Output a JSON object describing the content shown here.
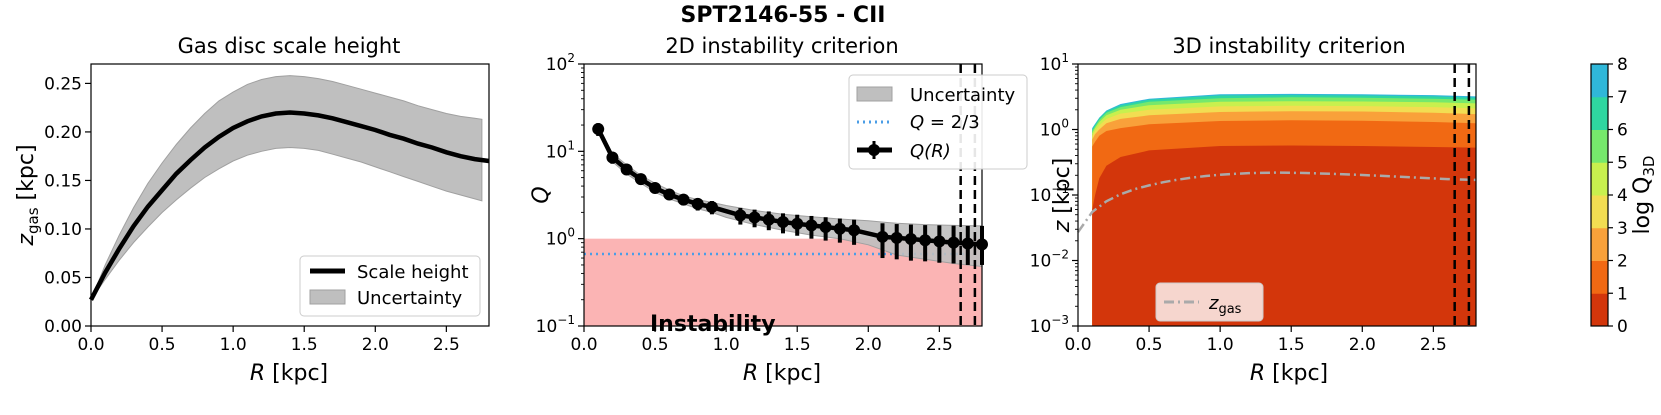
{
  "figure": {
    "suptitle": "SPT2146-55 - CII",
    "colors": {
      "band": "#bfbfbf",
      "band_edge": "#a0a0a0",
      "line": "#000000",
      "instability_fill": "#fbb4b4",
      "instability_text": "#ff0000",
      "q_line": "#4a9de6",
      "zgas_line": "#aaaaaa"
    }
  },
  "chart_data": [
    {
      "id": "scale-height",
      "type": "line",
      "title": "Gas disc scale height",
      "xlabel": "R [kpc]",
      "ylabel_main": "z",
      "ylabel_sub": "gas",
      "ylabel_unit": " [kpc]",
      "xlim": [
        0.0,
        2.8
      ],
      "ylim": [
        0.0,
        0.27
      ],
      "xticks": [
        "0.0",
        "0.5",
        "1.0",
        "1.5",
        "2.0",
        "2.5"
      ],
      "xtick_values": [
        0.0,
        0.5,
        1.0,
        1.5,
        2.0,
        2.5
      ],
      "yticks": [
        "0.00",
        "0.05",
        "0.10",
        "0.15",
        "0.20",
        "0.25"
      ],
      "ytick_values": [
        0.0,
        0.05,
        0.1,
        0.15,
        0.2,
        0.25
      ],
      "series": [
        {
          "name": "Scale height",
          "x": [
            0.0,
            0.1,
            0.2,
            0.3,
            0.4,
            0.5,
            0.6,
            0.7,
            0.8,
            0.9,
            1.0,
            1.1,
            1.2,
            1.3,
            1.4,
            1.5,
            1.6,
            1.7,
            1.8,
            1.9,
            2.0,
            2.1,
            2.2,
            2.3,
            2.4,
            2.5,
            2.6,
            2.7,
            2.8
          ],
          "y": [
            0.027,
            0.055,
            0.08,
            0.103,
            0.123,
            0.14,
            0.157,
            0.171,
            0.184,
            0.195,
            0.204,
            0.211,
            0.216,
            0.219,
            0.22,
            0.219,
            0.217,
            0.214,
            0.21,
            0.206,
            0.202,
            0.197,
            0.193,
            0.188,
            0.184,
            0.179,
            0.175,
            0.172,
            0.17
          ]
        },
        {
          "name": "Uncertainty",
          "x": [
            0.0,
            0.1,
            0.2,
            0.3,
            0.4,
            0.5,
            0.6,
            0.7,
            0.8,
            0.9,
            1.0,
            1.1,
            1.2,
            1.3,
            1.4,
            1.5,
            1.6,
            1.7,
            1.8,
            1.9,
            2.0,
            2.1,
            2.2,
            2.3,
            2.4,
            2.5,
            2.6,
            2.7,
            2.75
          ],
          "upper": [
            0.027,
            0.063,
            0.094,
            0.122,
            0.147,
            0.168,
            0.187,
            0.204,
            0.219,
            0.232,
            0.241,
            0.249,
            0.254,
            0.257,
            0.258,
            0.257,
            0.255,
            0.252,
            0.248,
            0.244,
            0.24,
            0.236,
            0.232,
            0.227,
            0.223,
            0.219,
            0.216,
            0.214,
            0.213
          ],
          "lower": [
            0.027,
            0.048,
            0.068,
            0.086,
            0.102,
            0.117,
            0.13,
            0.142,
            0.153,
            0.162,
            0.17,
            0.176,
            0.18,
            0.183,
            0.184,
            0.183,
            0.181,
            0.177,
            0.173,
            0.169,
            0.164,
            0.159,
            0.154,
            0.149,
            0.144,
            0.139,
            0.135,
            0.131,
            0.129
          ]
        }
      ],
      "legend": {
        "position": "lower-right",
        "entries": [
          "Scale height",
          "Uncertainty"
        ]
      }
    },
    {
      "id": "q2d",
      "type": "line",
      "title": "2D instability criterion",
      "xlabel": "R [kpc]",
      "ylabel": "Q",
      "yscale": "log",
      "xlim": [
        0.0,
        2.8
      ],
      "ylim": [
        0.1,
        100
      ],
      "xticks": [
        "0.0",
        "0.5",
        "1.0",
        "1.5",
        "2.0",
        "2.5"
      ],
      "xtick_values": [
        0.0,
        0.5,
        1.0,
        1.5,
        2.0,
        2.5
      ],
      "yticks": [
        {
          "base": "10",
          "exp": "−1",
          "value": 0.1
        },
        {
          "base": "10",
          "exp": "0",
          "value": 1
        },
        {
          "base": "10",
          "exp": "1",
          "value": 10
        },
        {
          "base": "10",
          "exp": "2",
          "value": 100
        }
      ],
      "instability_label": "Instability",
      "instability_threshold": 1,
      "q_threshold": 0.6667,
      "vlines": [
        2.65,
        2.75
      ],
      "series": [
        {
          "name": "Q(R)",
          "x": [
            0.1,
            0.2,
            0.3,
            0.4,
            0.5,
            0.6,
            0.7,
            0.8,
            0.9,
            1.1,
            1.2,
            1.3,
            1.4,
            1.5,
            1.6,
            1.7,
            1.8,
            1.9,
            2.1,
            2.2,
            2.3,
            2.4,
            2.5,
            2.6,
            2.7,
            2.8
          ],
          "y": [
            18,
            8.5,
            6.2,
            4.8,
            3.8,
            3.2,
            2.8,
            2.5,
            2.3,
            1.85,
            1.75,
            1.65,
            1.55,
            1.48,
            1.42,
            1.36,
            1.3,
            1.25,
            1.05,
            1.02,
            0.99,
            0.96,
            0.93,
            0.9,
            0.88,
            0.86
          ],
          "err_low": [
            15,
            7.2,
            5.4,
            4.2,
            3.3,
            2.8,
            2.4,
            2.1,
            1.9,
            1.45,
            1.35,
            1.25,
            1.15,
            1.08,
            1.0,
            0.95,
            0.9,
            0.85,
            0.6,
            0.58,
            0.56,
            0.55,
            0.53,
            0.52,
            0.5,
            0.5
          ],
          "err_high": [
            21,
            9.8,
            7.0,
            5.4,
            4.4,
            3.7,
            3.2,
            2.9,
            2.7,
            2.25,
            2.15,
            2.05,
            1.95,
            1.88,
            1.82,
            1.76,
            1.7,
            1.65,
            1.5,
            1.47,
            1.45,
            1.43,
            1.42,
            1.41,
            1.4,
            1.4
          ]
        },
        {
          "name": "Uncertainty",
          "x": [
            0.1,
            0.2,
            0.3,
            0.4,
            0.5,
            0.6,
            0.7,
            0.8,
            0.9,
            1.0,
            1.2,
            1.4,
            1.6,
            1.8,
            2.0,
            2.2,
            2.4,
            2.6,
            2.8
          ],
          "upper": [
            19.5,
            9.5,
            7.0,
            5.3,
            4.3,
            3.6,
            3.1,
            2.8,
            2.6,
            2.4,
            2.1,
            1.9,
            1.78,
            1.68,
            1.6,
            1.5,
            1.45,
            1.42,
            1.4
          ],
          "lower": [
            16.5,
            7.6,
            5.5,
            4.3,
            3.4,
            2.85,
            2.5,
            2.2,
            2.0,
            1.75,
            1.45,
            1.25,
            1.1,
            1.0,
            0.85,
            0.65,
            0.58,
            0.52,
            0.48
          ]
        }
      ],
      "legend": {
        "position": "upper-right",
        "entries": [
          {
            "label": "Uncertainty"
          },
          {
            "label_main": "Q",
            "label_rest": " = 2/3"
          },
          {
            "label_main": "Q",
            "label_rest": "(R)"
          }
        ]
      }
    },
    {
      "id": "q3d",
      "type": "heatmap",
      "title": "3D instability criterion",
      "xlabel": "R [kpc]",
      "ylabel": "z [kpc]",
      "yscale": "log",
      "xlim": [
        0.0,
        2.8
      ],
      "ylim": [
        0.001,
        10
      ],
      "xticks": [
        "0.0",
        "0.5",
        "1.0",
        "1.5",
        "2.0",
        "2.5"
      ],
      "xtick_values": [
        0.0,
        0.5,
        1.0,
        1.5,
        2.0,
        2.5
      ],
      "yticks": [
        {
          "base": "10",
          "exp": "−3",
          "value": 0.001
        },
        {
          "base": "10",
          "exp": "−2",
          "value": 0.01
        },
        {
          "base": "10",
          "exp": "−1",
          "value": 0.1
        },
        {
          "base": "10",
          "exp": "0",
          "value": 1
        },
        {
          "base": "10",
          "exp": "1",
          "value": 10
        }
      ],
      "vlines": [
        2.65,
        2.75
      ],
      "colorbar": {
        "label_main": "log Q",
        "label_sub": "3D",
        "ticks": [
          "0",
          "1",
          "2",
          "3",
          "4",
          "5",
          "6",
          "7",
          "8"
        ],
        "levels": [
          0,
          1,
          2,
          3,
          4,
          5,
          6,
          7,
          8
        ],
        "colors": [
          "#d3360b",
          "#f16913",
          "#f9a13a",
          "#f2dd52",
          "#c8f04e",
          "#76e86c",
          "#2fd6a0",
          "#30b7d9",
          "#3a8df2"
        ]
      },
      "level_boundaries": {
        "x": [
          0.1,
          0.12,
          0.15,
          0.2,
          0.3,
          0.5,
          1.0,
          1.5,
          2.0,
          2.5,
          2.8
        ],
        "z_levels": {
          "1": [
            0.06,
            0.1,
            0.18,
            0.28,
            0.38,
            0.48,
            0.56,
            0.57,
            0.56,
            0.54,
            0.53
          ],
          "2": [
            0.55,
            0.65,
            0.8,
            0.95,
            1.05,
            1.2,
            1.35,
            1.38,
            1.36,
            1.3,
            1.25
          ],
          "3": [
            0.7,
            0.85,
            1.0,
            1.25,
            1.45,
            1.65,
            1.85,
            1.9,
            1.88,
            1.8,
            1.72
          ],
          "4": [
            0.8,
            0.95,
            1.15,
            1.45,
            1.75,
            2.0,
            2.25,
            2.3,
            2.28,
            2.2,
            2.1
          ],
          "5": [
            0.88,
            1.05,
            1.3,
            1.65,
            2.0,
            2.35,
            2.65,
            2.7,
            2.68,
            2.6,
            2.5
          ],
          "6": [
            0.95,
            1.12,
            1.4,
            1.8,
            2.2,
            2.65,
            3.0,
            3.1,
            3.05,
            2.95,
            2.85
          ],
          "7": [
            1.0,
            1.18,
            1.48,
            1.9,
            2.35,
            2.85,
            3.3,
            3.35,
            3.3,
            3.2,
            3.05
          ],
          "8": [
            1.05,
            1.22,
            1.52,
            1.95,
            2.45,
            2.95,
            3.45,
            3.5,
            3.45,
            3.35,
            3.2
          ]
        }
      },
      "zgas_line": {
        "name": "z_gas",
        "x": [
          0.0,
          0.1,
          0.2,
          0.3,
          0.4,
          0.5,
          0.6,
          0.7,
          0.8,
          0.9,
          1.0,
          1.2,
          1.4,
          1.6,
          1.8,
          2.0,
          2.2,
          2.4,
          2.6,
          2.8
        ],
        "y": [
          0.027,
          0.055,
          0.08,
          0.103,
          0.123,
          0.14,
          0.157,
          0.171,
          0.184,
          0.195,
          0.204,
          0.216,
          0.22,
          0.217,
          0.21,
          0.202,
          0.193,
          0.184,
          0.175,
          0.17
        ]
      },
      "legend": {
        "position": "lower-left",
        "label_main": "z",
        "label_sub": "gas"
      }
    }
  ]
}
